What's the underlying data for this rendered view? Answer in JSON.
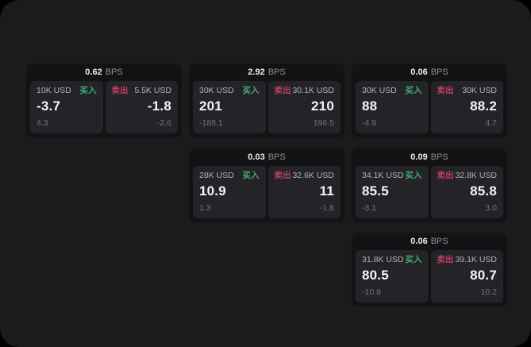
{
  "theme": {
    "outside_background": "#000000",
    "panel_background": "#1b1b1d",
    "card_background": "#131316",
    "subcard_background": "#242428",
    "buy_color": "#3fae6d",
    "sell_color": "#c04061",
    "value_color": "#f5f5f7",
    "muted_color": "#737378"
  },
  "labels": {
    "bps": "BPS",
    "buy": "买入",
    "sell": "卖出"
  },
  "cards": [
    {
      "spread_bps": "0.62",
      "buy": {
        "amount": "10K USD",
        "price": "-3.7",
        "secondary": "4.3"
      },
      "sell": {
        "amount": "5.5K USD",
        "price": "-1.8",
        "secondary": "-2.6"
      }
    },
    {
      "spread_bps": "2.92",
      "buy": {
        "amount": "30K USD",
        "price": "201",
        "secondary": "-188.1"
      },
      "sell": {
        "amount": "30.1K USD",
        "price": "210",
        "secondary": "196.5"
      }
    },
    {
      "spread_bps": "0.06",
      "buy": {
        "amount": "30K USD",
        "price": "88",
        "secondary": "-4.9"
      },
      "sell": {
        "amount": "30K USD",
        "price": "88.2",
        "secondary": "4.7"
      }
    },
    {
      "spread_bps": "0.03",
      "buy": {
        "amount": "28K USD",
        "price": "10.9",
        "secondary": "1.3"
      },
      "sell": {
        "amount": "32.6K USD",
        "price": "11",
        "secondary": "-1.8"
      }
    },
    {
      "spread_bps": "0.09",
      "buy": {
        "amount": "34.1K USD",
        "price": "85.5",
        "secondary": "-3.1"
      },
      "sell": {
        "amount": "32.8K USD",
        "price": "85.8",
        "secondary": "3.0"
      }
    },
    {
      "spread_bps": "0.06",
      "buy": {
        "amount": "31.8K USD",
        "price": "80.5",
        "secondary": "-10.8"
      },
      "sell": {
        "amount": "39.1K USD",
        "price": "80.7",
        "secondary": "10.2"
      }
    }
  ]
}
